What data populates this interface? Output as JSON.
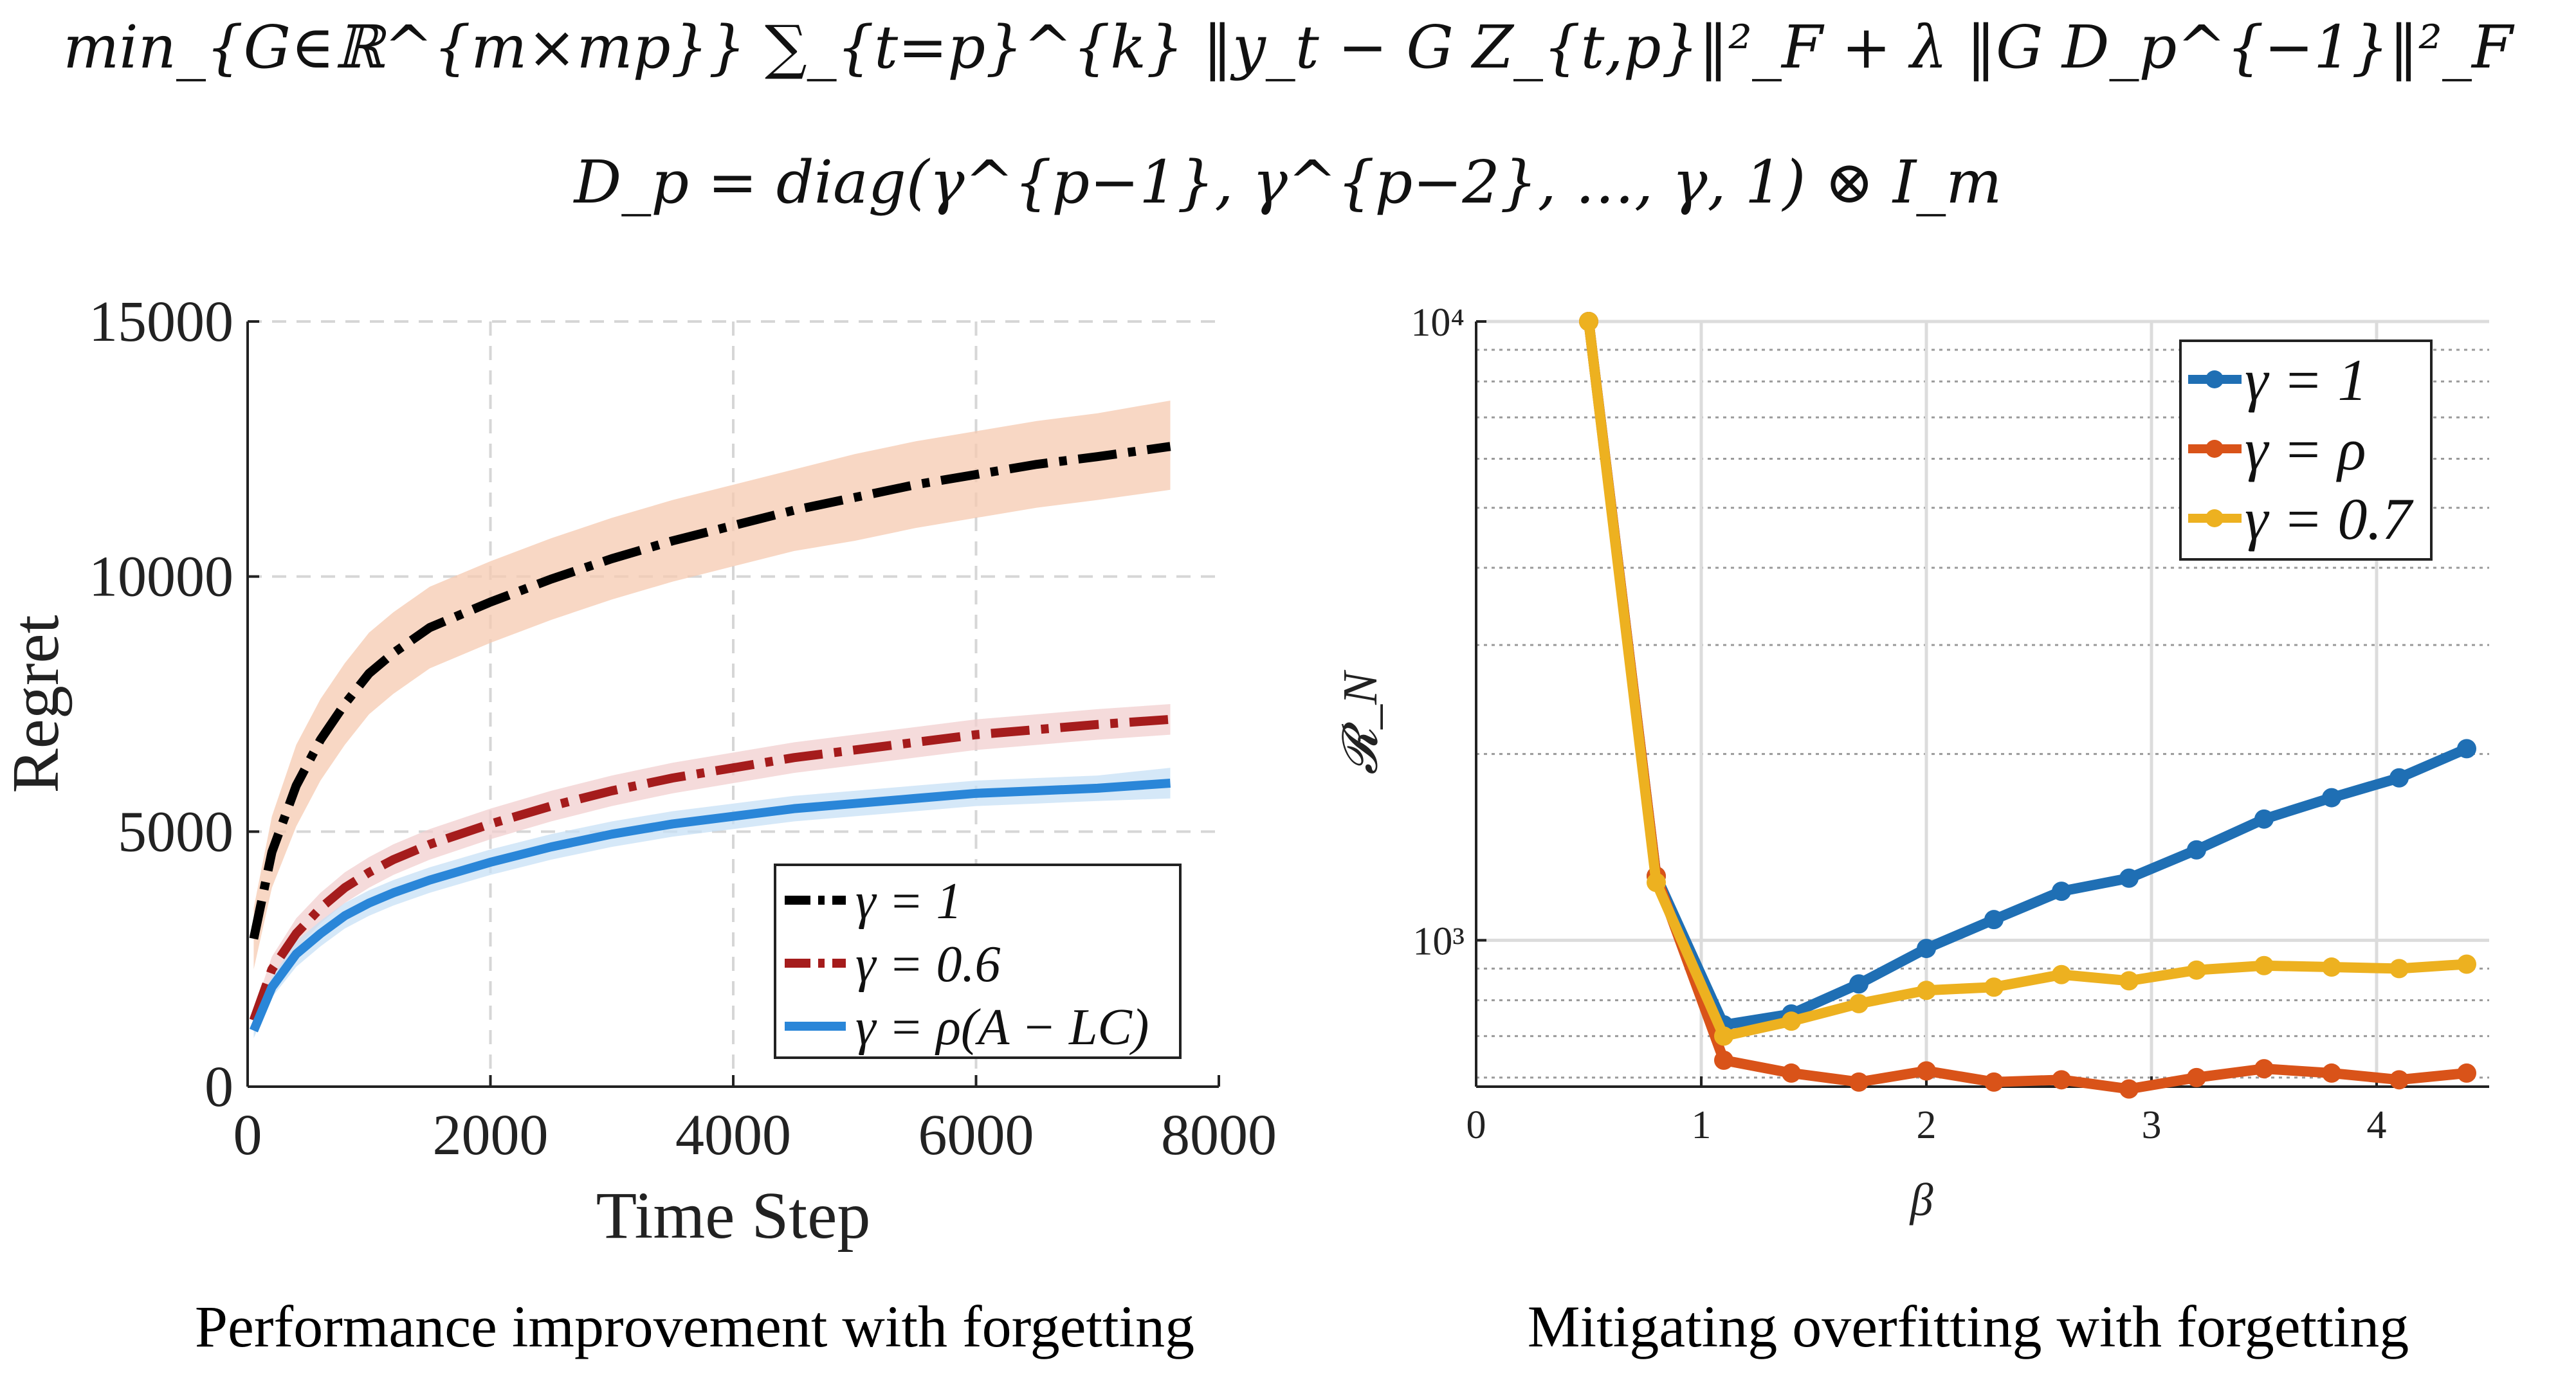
{
  "header": {
    "equation_1": "min_{G∈ℝ^{m×mp}}  ∑_{t=p}^{k} ‖y_t − G Z_{t,p}‖²_F + λ ‖G D_p^{−1}‖²_F",
    "equation_2": "D_p = diag(γ^{p−1}, γ^{p−2}, …, γ, 1) ⊗ I_m"
  },
  "chart_data": [
    {
      "type": "line",
      "caption": "Performance improvement with forgetting",
      "title": "",
      "xlabel": "Time Step",
      "ylabel": "Regret",
      "xlim": [
        0,
        8000
      ],
      "ylim": [
        0,
        15000
      ],
      "xticks": [
        0,
        2000,
        4000,
        6000,
        8000
      ],
      "xtick_labels": [
        "0",
        "2000",
        "4000",
        "6000",
        "8000"
      ],
      "yticks": [
        0,
        5000,
        10000,
        15000
      ],
      "ytick_labels": [
        "0",
        "5000",
        "10000",
        "15000"
      ],
      "grid": true,
      "legend_position": "bottom-right",
      "x": [
        50,
        200,
        400,
        600,
        800,
        1000,
        1200,
        1500,
        2000,
        2500,
        3000,
        3500,
        4000,
        4500,
        5000,
        5500,
        6000,
        6500,
        7000,
        7600
      ],
      "series": [
        {
          "name": "γ = 1",
          "color": "#000000",
          "band_color": "#f6c9b0",
          "style": "dashdot",
          "values": [
            2900,
            4600,
            5900,
            6800,
            7500,
            8100,
            8500,
            9000,
            9500,
            9950,
            10350,
            10700,
            11000,
            11300,
            11550,
            11800,
            12000,
            12200,
            12350,
            12550
          ],
          "band_lower": [
            2300,
            3900,
            5100,
            6000,
            6700,
            7300,
            7700,
            8200,
            8700,
            9150,
            9550,
            9900,
            10200,
            10500,
            10700,
            10950,
            11150,
            11350,
            11500,
            11700
          ],
          "band_upper": [
            3500,
            5300,
            6700,
            7600,
            8300,
            8900,
            9300,
            9800,
            10300,
            10750,
            11150,
            11500,
            11800,
            12100,
            12400,
            12650,
            12850,
            13050,
            13200,
            13450
          ]
        },
        {
          "name": "γ = 0.6",
          "color": "#a51c1c",
          "band_color": "#f1cfcf",
          "style": "dashdot",
          "values": [
            1300,
            2300,
            3000,
            3500,
            3900,
            4200,
            4450,
            4750,
            5150,
            5500,
            5800,
            6050,
            6250,
            6450,
            6600,
            6750,
            6900,
            7000,
            7100,
            7200
          ],
          "band_lower": [
            1100,
            2050,
            2700,
            3200,
            3600,
            3900,
            4150,
            4450,
            4850,
            5200,
            5500,
            5750,
            5950,
            6150,
            6300,
            6450,
            6600,
            6700,
            6800,
            6900
          ],
          "band_upper": [
            1500,
            2550,
            3300,
            3800,
            4200,
            4500,
            4750,
            5050,
            5450,
            5800,
            6100,
            6350,
            6550,
            6750,
            6900,
            7050,
            7200,
            7300,
            7400,
            7500
          ]
        },
        {
          "name": "γ = ρ(A − LC)",
          "color": "#2a86d8",
          "band_color": "#c7e0f6",
          "style": "solid",
          "values": [
            1100,
            1950,
            2600,
            3000,
            3350,
            3600,
            3800,
            4050,
            4400,
            4700,
            4950,
            5150,
            5300,
            5450,
            5550,
            5650,
            5750,
            5800,
            5850,
            5950
          ],
          "band_lower": [
            950,
            1750,
            2350,
            2750,
            3100,
            3350,
            3550,
            3800,
            4150,
            4450,
            4700,
            4900,
            5050,
            5200,
            5300,
            5400,
            5500,
            5550,
            5600,
            5650
          ],
          "band_upper": [
            1250,
            2150,
            2850,
            3250,
            3600,
            3850,
            4050,
            4300,
            4650,
            4950,
            5200,
            5400,
            5550,
            5700,
            5800,
            5900,
            6000,
            6050,
            6100,
            6250
          ]
        }
      ]
    },
    {
      "type": "line",
      "scale_y": "log",
      "caption": "Mitigating overfitting with forgetting",
      "title": "",
      "xlabel": "β",
      "ylabel": "𝓡_N",
      "xlim": [
        0,
        4.5
      ],
      "ylim": [
        580,
        10000
      ],
      "xticks": [
        0,
        1,
        2,
        3,
        4
      ],
      "xtick_labels": [
        "0",
        "1",
        "2",
        "3",
        "4"
      ],
      "yticks": [
        1000,
        10000
      ],
      "ytick_labels": [
        "10³",
        "10⁴"
      ],
      "grid": true,
      "legend_position": "top-right",
      "x": [
        0.5,
        0.8,
        1.1,
        1.4,
        1.7,
        2.0,
        2.3,
        2.6,
        2.9,
        3.2,
        3.5,
        3.8,
        4.1,
        4.4
      ],
      "series": [
        {
          "name": "γ = 1",
          "color": "#1f6fb4",
          "values": [
            10000,
            1270,
            730,
            760,
            850,
            970,
            1080,
            1200,
            1260,
            1400,
            1570,
            1700,
            1830,
            2040
          ]
        },
        {
          "name": "γ = ρ",
          "color": "#d95319",
          "values": [
            10000,
            1270,
            640,
            610,
            590,
            615,
            590,
            595,
            575,
            600,
            620,
            610,
            595,
            610
          ]
        },
        {
          "name": "γ = 0.7",
          "color": "#edb120",
          "values": [
            10000,
            1240,
            700,
            740,
            790,
            830,
            840,
            880,
            860,
            895,
            910,
            905,
            900,
            915
          ]
        }
      ]
    }
  ]
}
